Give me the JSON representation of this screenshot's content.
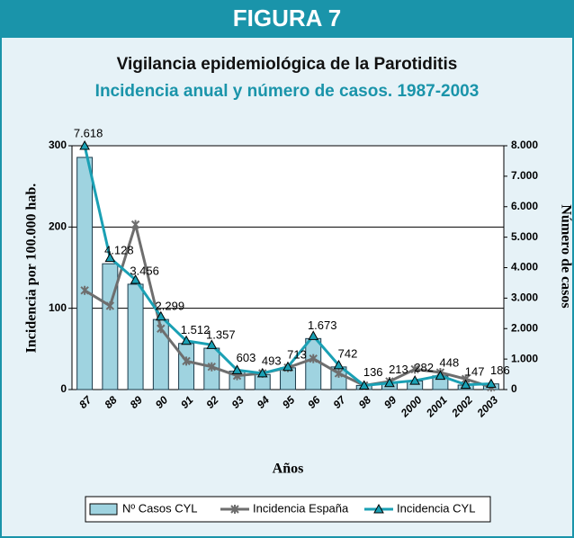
{
  "header": "FIGURA 7",
  "chart_data": {
    "type": "bar",
    "title": "Vigilancia epidemiológica de la Parotiditis",
    "subtitle": "Incidencia anual y número de casos. 1987-2003",
    "x_label": "Años",
    "y_label": "Incidencia por 100.000 hab.",
    "y2_label": "Número de casos",
    "categories": [
      "87",
      "88",
      "89",
      "90",
      "91",
      "92",
      "93",
      "94",
      "95",
      "96",
      "97",
      "98",
      "99",
      "2000",
      "2001",
      "2002",
      "2003"
    ],
    "ylim": [
      0,
      300
    ],
    "yticks": [
      0,
      100,
      200,
      300
    ],
    "y2lim": [
      0,
      8000
    ],
    "y2ticks": [
      0,
      {
        "value": 1000,
        "label": "1.000"
      },
      {
        "value": 2000,
        "label": "2.000"
      },
      {
        "value": 3000,
        "label": "3.000"
      },
      {
        "value": 4000,
        "label": "4.000"
      },
      {
        "value": 5000,
        "label": "5.000"
      },
      {
        "value": 6000,
        "label": "6.000"
      },
      {
        "value": 7000,
        "label": "7.000"
      },
      {
        "value": 8000,
        "label": "8.000"
      }
    ],
    "grid": true,
    "legend": "bottom",
    "series": [
      {
        "name": "Nº Casos CYL",
        "type": "bar",
        "axis": "y2",
        "color": "#9fd3e0",
        "values": [
          7618,
          4128,
          3456,
          2299,
          1512,
          1357,
          603,
          493,
          713,
          1673,
          742,
          136,
          213,
          282,
          448,
          147,
          186
        ],
        "value_labels": [
          "7.618",
          "4.128",
          "3.456",
          "2.299",
          "1.512",
          "1.357",
          "603",
          "493",
          "713",
          "1.673",
          "742",
          "136",
          "213",
          "282",
          "448",
          "147",
          "186"
        ]
      },
      {
        "name": "Incidencia España",
        "type": "line",
        "marker": "star",
        "color": "#6e6e6e",
        "values": [
          122,
          103,
          203,
          75,
          35,
          28,
          17,
          20,
          27,
          38,
          20,
          5,
          10,
          25,
          21,
          13,
          3
        ]
      },
      {
        "name": "Incidencia CYL",
        "type": "line",
        "marker": "triangle",
        "color": "#1aa0b4",
        "values": [
          300,
          162,
          135,
          90,
          60,
          55,
          24,
          20,
          28,
          66,
          30,
          5,
          8,
          11,
          17,
          6,
          7
        ]
      }
    ]
  }
}
